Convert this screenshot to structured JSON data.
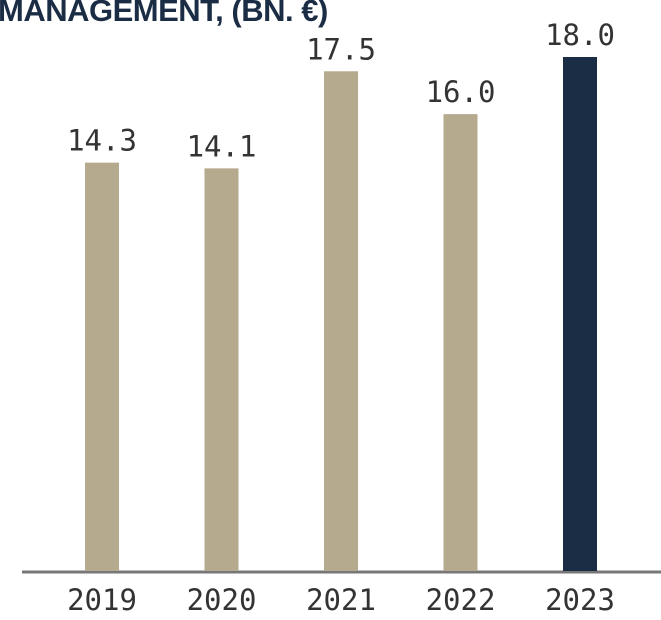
{
  "chart_data": {
    "type": "bar",
    "title": "MANAGEMENT, (BN. €)",
    "categories": [
      "2019",
      "2020",
      "2021",
      "2022",
      "2023"
    ],
    "values": [
      14.3,
      14.1,
      17.5,
      16.0,
      18.0
    ],
    "value_labels": [
      "14.3",
      "14.1",
      "17.5",
      "16.0",
      "18.0"
    ],
    "colors": [
      "#b5aa8e",
      "#b5aa8e",
      "#b5aa8e",
      "#b5aa8e",
      "#1b2d45"
    ]
  }
}
